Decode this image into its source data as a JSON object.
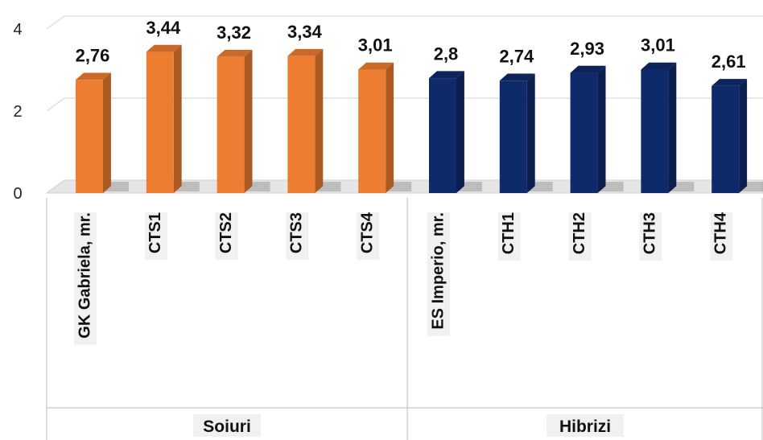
{
  "chart_data": {
    "type": "bar",
    "style": "3d-column",
    "ylim": [
      0,
      4
    ],
    "yticks": [
      0,
      2,
      4
    ],
    "grid": true,
    "groups": [
      {
        "name": "Soiuri",
        "color": "#ED7D31",
        "categories": [
          "GK Gabriela, mr.",
          "CTS1",
          "CTS2",
          "CTS3",
          "CTS4"
        ],
        "values": [
          2.76,
          3.44,
          3.32,
          3.34,
          3.01
        ],
        "labels": [
          "2,76",
          "3,44",
          "3,32",
          "3,34",
          "3,01"
        ]
      },
      {
        "name": "Hibrizi",
        "color": "#0F2A6B",
        "categories": [
          "ES Imperio, mr.",
          "CTH1",
          "CTH2",
          "CTH3",
          "CTH4"
        ],
        "values": [
          2.8,
          2.74,
          2.93,
          3.01,
          2.61
        ],
        "labels": [
          "2,8",
          "2,74",
          "2,93",
          "3,01",
          "2,61"
        ]
      }
    ]
  }
}
